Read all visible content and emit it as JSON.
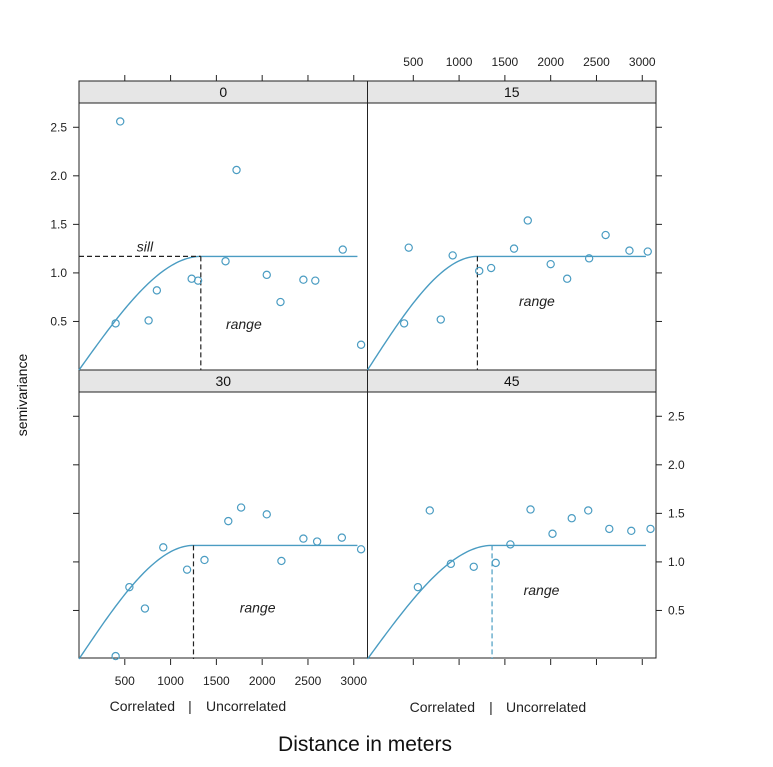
{
  "chart_data": {
    "type": "scatter",
    "layout": "2x2 trellis",
    "xlabel": "Distance in meters",
    "ylabel": "semivariance",
    "xlim": [
      0,
      3150
    ],
    "ylim": [
      0,
      2.75
    ],
    "x_ticks": [
      500,
      1000,
      1500,
      2000,
      2500,
      3000
    ],
    "y_ticks": [
      0.5,
      1.0,
      1.5,
      2.0,
      2.5
    ],
    "x_tick_labels": [
      "500",
      "1000",
      "1500",
      "2000",
      "2500",
      "3000"
    ],
    "y_tick_labels": [
      "0.5",
      "1.0",
      "1.5",
      "2.0",
      "2.5"
    ],
    "correlated_label": "Correlated",
    "separator_label": "|",
    "uncorrelated_label": "Uncorrelated",
    "marker_color": "#4a9cc2",
    "line_color": "#4a9cc2",
    "panels": [
      {
        "strip": "0",
        "sill": 1.17,
        "range": 1330,
        "sill_label": "sill",
        "range_label": "range",
        "points": [
          [
            400,
            0.48
          ],
          [
            450,
            2.56
          ],
          [
            760,
            0.51
          ],
          [
            850,
            0.82
          ],
          [
            1230,
            0.94
          ],
          [
            1300,
            0.92
          ],
          [
            1600,
            1.12
          ],
          [
            1720,
            2.06
          ],
          [
            2050,
            0.98
          ],
          [
            2200,
            0.7
          ],
          [
            2450,
            0.93
          ],
          [
            2580,
            0.92
          ],
          [
            2880,
            1.24
          ],
          [
            3080,
            0.26
          ]
        ]
      },
      {
        "strip": "15",
        "sill": 1.17,
        "range": 1200,
        "range_label": "range",
        "points": [
          [
            400,
            0.48
          ],
          [
            450,
            1.26
          ],
          [
            800,
            0.52
          ],
          [
            930,
            1.18
          ],
          [
            1220,
            1.02
          ],
          [
            1350,
            1.05
          ],
          [
            1600,
            1.25
          ],
          [
            1750,
            1.54
          ],
          [
            2000,
            1.09
          ],
          [
            2180,
            0.94
          ],
          [
            2420,
            1.15
          ],
          [
            2600,
            1.39
          ],
          [
            2860,
            1.23
          ],
          [
            3060,
            1.22
          ]
        ]
      },
      {
        "strip": "30",
        "sill": 1.17,
        "range": 1250,
        "range_label": "range",
        "points": [
          [
            400,
            0.03
          ],
          [
            550,
            0.74
          ],
          [
            720,
            0.52
          ],
          [
            920,
            1.15
          ],
          [
            1180,
            0.92
          ],
          [
            1370,
            1.02
          ],
          [
            1630,
            1.42
          ],
          [
            1770,
            1.56
          ],
          [
            2050,
            1.49
          ],
          [
            2210,
            1.01
          ],
          [
            2450,
            1.24
          ],
          [
            2600,
            1.21
          ],
          [
            2870,
            1.25
          ],
          [
            3080,
            1.13
          ]
        ]
      },
      {
        "strip": "45",
        "sill": 1.17,
        "range": 1360,
        "range_label": "range",
        "points": [
          [
            550,
            0.74
          ],
          [
            680,
            1.53
          ],
          [
            910,
            0.98
          ],
          [
            1160,
            0.95
          ],
          [
            1400,
            0.99
          ],
          [
            1560,
            1.18
          ],
          [
            1780,
            1.54
          ],
          [
            2020,
            1.29
          ],
          [
            2230,
            1.45
          ],
          [
            2410,
            1.53
          ],
          [
            2640,
            1.34
          ],
          [
            2880,
            1.32
          ],
          [
            3090,
            1.34
          ]
        ]
      }
    ]
  }
}
